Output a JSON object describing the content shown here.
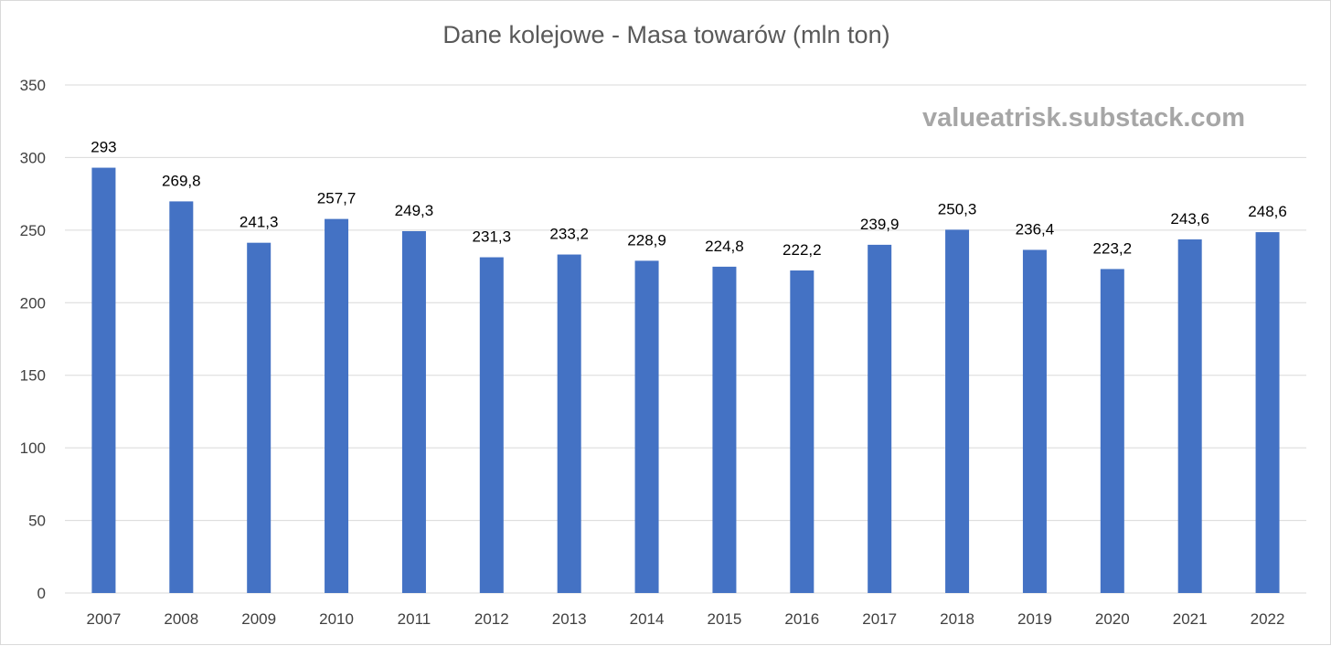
{
  "chart_data": {
    "type": "bar",
    "title": "Dane kolejowe - Masa towarów (mln ton)",
    "watermark": "valueatrisk.substack.com",
    "categories": [
      "2007",
      "2008",
      "2009",
      "2010",
      "2011",
      "2012",
      "2013",
      "2014",
      "2015",
      "2016",
      "2017",
      "2018",
      "2019",
      "2020",
      "2021",
      "2022"
    ],
    "values": [
      293,
      269.8,
      241.3,
      257.7,
      249.3,
      231.3,
      233.2,
      228.9,
      224.8,
      222.2,
      239.9,
      250.3,
      236.4,
      223.2,
      243.6,
      248.6
    ],
    "value_labels": [
      "293",
      "269,8",
      "241,3",
      "257,7",
      "249,3",
      "231,3",
      "233,2",
      "228,9",
      "224,8",
      "222,2",
      "239,9",
      "250,3",
      "236,4",
      "223,2",
      "243,6",
      "248,6"
    ],
    "yticks": [
      "0",
      "50",
      "100",
      "150",
      "200",
      "250",
      "300",
      "350"
    ],
    "ylim": [
      0,
      350
    ],
    "xlabel": "",
    "ylabel": "",
    "grid": true,
    "legend": "none",
    "bar_color": "#4472c4",
    "grid_color": "#d9d9d9",
    "text_color": "#404040"
  }
}
